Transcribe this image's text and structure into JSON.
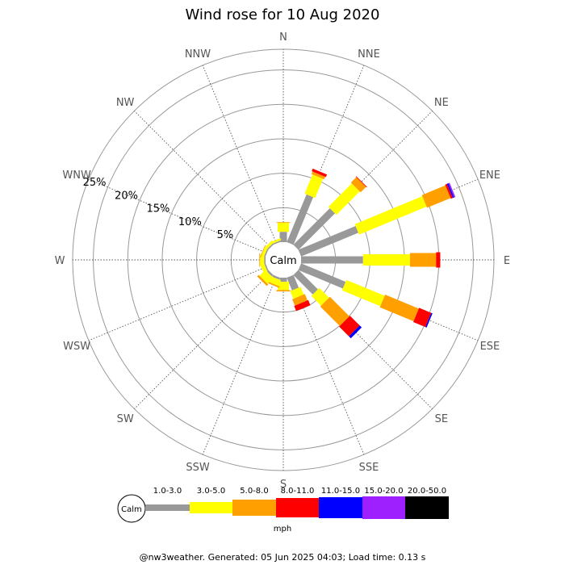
{
  "chart_data": {
    "type": "wind-rose",
    "title": "Wind rose for 10 Aug 2020",
    "directions": [
      "N",
      "NNE",
      "NE",
      "ENE",
      "E",
      "ESE",
      "SE",
      "SSE",
      "S",
      "SSW",
      "SW",
      "WSW",
      "W",
      "WNW",
      "NW",
      "NNW"
    ],
    "ring_labels": [
      "5%",
      "10%",
      "15%",
      "20%",
      "25%"
    ],
    "rmax_percent": 28,
    "calm_label": "Calm",
    "speed_bins": [
      "1.0-3.0",
      "3.0-5.0",
      "5.0-8.0",
      "8.0-11.0",
      "11.0-15.0",
      "15.0-20.0",
      "20.0-50.0"
    ],
    "speed_colors": [
      "#999999",
      "#ffff00",
      "#ff9f00",
      "#ff0000",
      "#0000ff",
      "#9f20ff",
      "#000000"
    ],
    "speed_unit": "mph",
    "series": [
      {
        "direction": "N",
        "cumulative_percent": [
          1.5,
          2.8,
          2.9,
          2.9,
          2.9,
          2.9,
          2.9
        ]
      },
      {
        "direction": "NNE",
        "cumulative_percent": [
          7.5,
          10.5,
          10.9,
          11.3,
          11.3,
          11.3,
          11.3
        ]
      },
      {
        "direction": "NE",
        "cumulative_percent": [
          7.5,
          12.3,
          13.4,
          13.5,
          13.5,
          13.5,
          13.5
        ]
      },
      {
        "direction": "ENE",
        "cumulative_percent": [
          9.0,
          19.6,
          23.3,
          23.6,
          23.8,
          24.0,
          24.0
        ]
      },
      {
        "direction": "E",
        "cumulative_percent": [
          9.0,
          15.8,
          19.6,
          20.2,
          20.2,
          20.2,
          20.2
        ]
      },
      {
        "direction": "ESE",
        "cumulative_percent": [
          7.0,
          13.0,
          18.3,
          20.2,
          20.4,
          20.4,
          20.4
        ]
      },
      {
        "direction": "SE",
        "cumulative_percent": [
          4.0,
          6.0,
          10.0,
          12.0,
          12.4,
          12.4,
          12.4
        ]
      },
      {
        "direction": "SSE",
        "cumulative_percent": [
          2.0,
          3.2,
          4.2,
          5.0,
          5.0,
          5.0,
          5.0
        ]
      },
      {
        "direction": "S",
        "cumulative_percent": [
          0.6,
          1.8,
          2.0,
          2.0,
          2.0,
          2.0,
          2.0
        ]
      },
      {
        "direction": "SSW",
        "cumulative_percent": [
          0.3,
          1.2,
          1.4,
          1.4,
          1.4,
          1.4,
          1.4
        ]
      },
      {
        "direction": "SW",
        "cumulative_percent": [
          0.3,
          1.5,
          1.8,
          1.8,
          1.8,
          1.8,
          1.8
        ]
      },
      {
        "direction": "WSW",
        "cumulative_percent": [
          0.2,
          0.8,
          0.8,
          0.8,
          0.8,
          0.8,
          0.8
        ]
      },
      {
        "direction": "W",
        "cumulative_percent": [
          0.2,
          0.8,
          0.9,
          0.9,
          0.9,
          0.9,
          0.9
        ]
      },
      {
        "direction": "WNW",
        "cumulative_percent": [
          0.2,
          0.6,
          0.7,
          0.7,
          0.7,
          0.7,
          0.7
        ]
      },
      {
        "direction": "NW",
        "cumulative_percent": [
          0.2,
          0.6,
          0.6,
          0.6,
          0.6,
          0.6,
          0.6
        ]
      },
      {
        "direction": "NNW",
        "cumulative_percent": [
          0.2,
          0.5,
          0.5,
          0.5,
          0.5,
          0.5,
          0.5
        ]
      }
    ],
    "footer": "@nw3weather. Generated: 05 Jun 2025 04:03; Load time: 0.13 s"
  }
}
